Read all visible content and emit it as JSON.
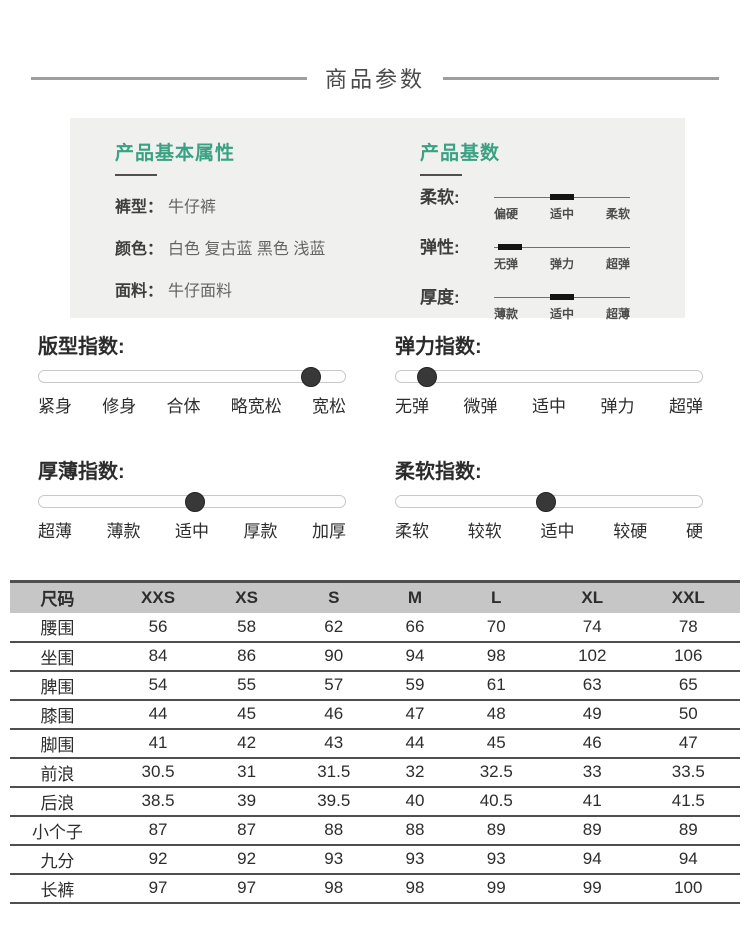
{
  "header": {
    "title": "商品参数"
  },
  "attributes": {
    "left": {
      "title": "产品基本属性",
      "rows": [
        {
          "label": "裤型：",
          "value": "牛仔裤"
        },
        {
          "label": "颜色：",
          "value": "白色 复古蓝 黑色 浅蓝"
        },
        {
          "label": "面料：",
          "value": "牛仔面料"
        }
      ]
    },
    "right": {
      "title": "产品基数",
      "sliders": [
        {
          "label": "柔软:",
          "marker_pct": 50,
          "ticks": [
            "偏硬",
            "适中",
            "柔软"
          ],
          "selected": "适中"
        },
        {
          "label": "弹性:",
          "marker_pct": 12,
          "ticks": [
            "无弹",
            "弹力",
            "超弹"
          ],
          "selected": "无弹"
        },
        {
          "label": "厚度:",
          "marker_pct": 50,
          "ticks": [
            "薄款",
            "适中",
            "超薄"
          ],
          "selected": "适中"
        }
      ]
    }
  },
  "index_sliders": [
    {
      "title": "版型指数:",
      "value_pct": 89,
      "labels": [
        "紧身",
        "修身",
        "合体",
        "略宽松",
        "宽松"
      ],
      "selected": "宽松"
    },
    {
      "title": "弹力指数:",
      "value_pct": 10,
      "labels": [
        "无弹",
        "微弹",
        "适中",
        "弹力",
        "超弹"
      ],
      "selected": "无弹"
    },
    {
      "title": "厚薄指数:",
      "value_pct": 51,
      "labels": [
        "超薄",
        "薄款",
        "适中",
        "厚款",
        "加厚"
      ],
      "selected": "适中"
    },
    {
      "title": "柔软指数:",
      "value_pct": 49,
      "labels": [
        "柔软",
        "较软",
        "适中",
        "较硬",
        "硬"
      ],
      "selected": "适中"
    }
  ],
  "size_table": {
    "headers": [
      "尺码",
      "XXS",
      "XS",
      "S",
      "M",
      "L",
      "XL",
      "XXL"
    ],
    "rows": [
      {
        "label": "腰围",
        "values": [
          "56",
          "58",
          "62",
          "66",
          "70",
          "74",
          "78"
        ]
      },
      {
        "label": "坐围",
        "values": [
          "84",
          "86",
          "90",
          "94",
          "98",
          "102",
          "106"
        ]
      },
      {
        "label": "脾围",
        "values": [
          "54",
          "55",
          "57",
          "59",
          "61",
          "63",
          "65"
        ]
      },
      {
        "label": "膝围",
        "values": [
          "44",
          "45",
          "46",
          "47",
          "48",
          "49",
          "50"
        ]
      },
      {
        "label": "脚围",
        "values": [
          "41",
          "42",
          "43",
          "44",
          "45",
          "46",
          "47"
        ]
      },
      {
        "label": "前浪",
        "values": [
          "30.5",
          "31",
          "31.5",
          "32",
          "32.5",
          "33",
          "33.5"
        ]
      },
      {
        "label": "后浪",
        "values": [
          "38.5",
          "39",
          "39.5",
          "40",
          "40.5",
          "41",
          "41.5"
        ]
      },
      {
        "label": "小个子",
        "values": [
          "87",
          "87",
          "88",
          "88",
          "89",
          "89",
          "89"
        ]
      },
      {
        "label": "九分",
        "values": [
          "92",
          "92",
          "93",
          "93",
          "93",
          "94",
          "94"
        ]
      },
      {
        "label": "长裤",
        "values": [
          "97",
          "97",
          "98",
          "98",
          "99",
          "99",
          "100"
        ]
      }
    ]
  },
  "colors": {
    "accent_green": "#3aa183",
    "box_background": "#f0f0ee",
    "table_header_background": "#c6c6c6",
    "table_border": "#4f4f4f",
    "slider_dot": "#383838",
    "divider_line": "#9e9e9e"
  }
}
